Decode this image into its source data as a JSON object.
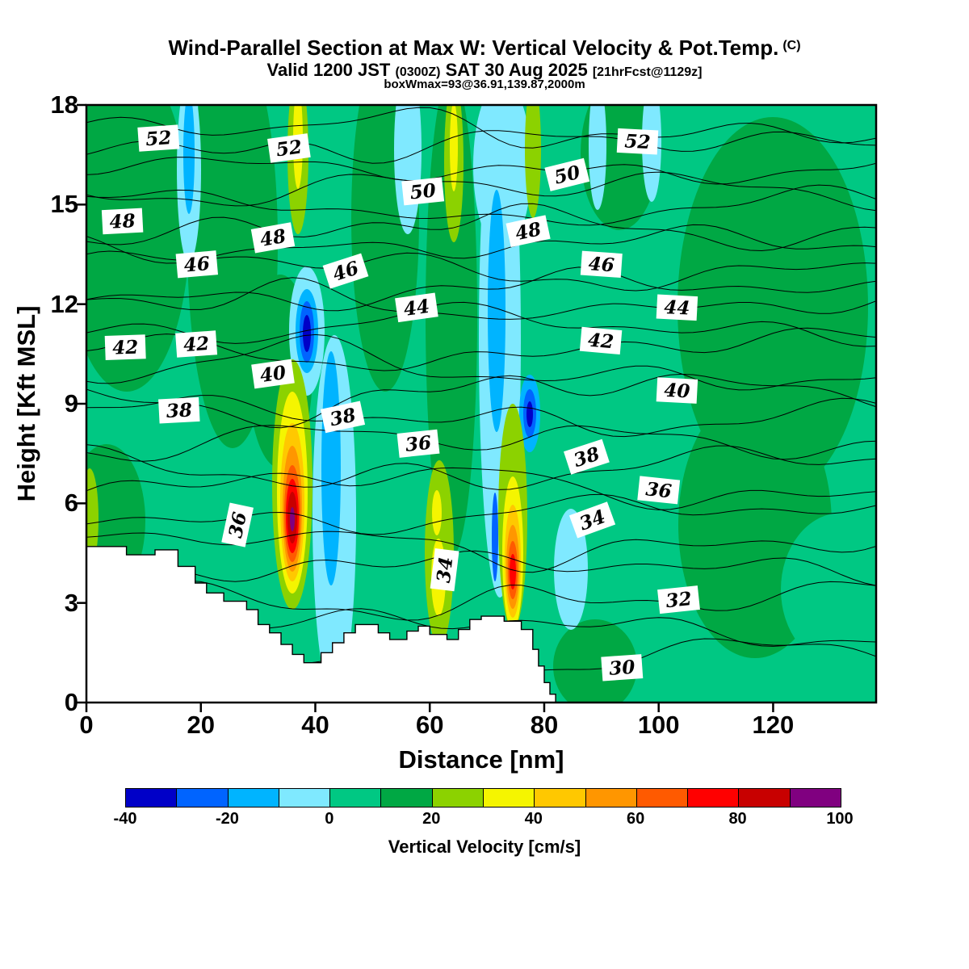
{
  "titles": {
    "main": "Wind-Parallel Section at Max W: Vertical Velocity & Pot.Temp.",
    "main_suffix": "(C)",
    "valid_prefix": "Valid 1200 JST ",
    "valid_small1": "(0300Z)",
    "valid_mid": " SAT 30 Aug 2025 ",
    "valid_small2": "[21hrFcst@1129z]",
    "subtitle2": "boxWmax=93@36.91,139.87,2000m"
  },
  "axes": {
    "x": {
      "label": "Distance [nm]",
      "ticks": [
        0,
        20,
        40,
        60,
        80,
        100,
        120
      ],
      "range": [
        0,
        138
      ]
    },
    "y": {
      "label": "Height [Kft MSL]",
      "ticks": [
        0,
        3,
        6,
        9,
        12,
        15,
        18
      ],
      "range": [
        0,
        18
      ]
    }
  },
  "colorbar": {
    "label": "Vertical Velocity [cm/s]",
    "ticks": [
      -40,
      -20,
      0,
      20,
      40,
      60,
      80,
      100
    ],
    "levels": [
      -40,
      -30,
      -20,
      -10,
      0,
      10,
      20,
      30,
      40,
      50,
      60,
      70,
      80,
      90,
      100
    ],
    "colors": [
      "#0000C8",
      "#0064FF",
      "#00B4FF",
      "#7FE9FF",
      "#00C883",
      "#00A844",
      "#8CD200",
      "#F5F500",
      "#FFC800",
      "#FF9600",
      "#FF5A00",
      "#FF0000",
      "#C80000",
      "#800080"
    ]
  },
  "chart_data": {
    "type": "heatmap",
    "title": "Wind-Parallel Section at Max W: Vertical Velocity & Pot.Temp. (C)",
    "subtitle": "Valid 1200 JST (0300Z) SAT 30 Aug 2025 [21hrFcst@1129z]",
    "annotation": "boxWmax=93@36.91,139.87,2000m",
    "xlabel": "Distance [nm]",
    "ylabel": "Height [Kft MSL]",
    "xlim": [
      0,
      138
    ],
    "ylim": [
      0,
      18
    ],
    "fill_field": "vertical velocity (cm/s), filled contours every 10 cm/s from -40 to 100",
    "line_field": "potential temperature (C), line contours every 1 C, labeled every 2 C",
    "isotherm_labels": [
      {
        "v": 52,
        "x": 12.6,
        "y": 17.0,
        "rot": -4
      },
      {
        "v": 52,
        "x": 35.4,
        "y": 16.7,
        "rot": -8
      },
      {
        "v": 52,
        "x": 96.3,
        "y": 16.9,
        "rot": 3
      },
      {
        "v": 50,
        "x": 58.8,
        "y": 15.4,
        "rot": -6
      },
      {
        "v": 50,
        "x": 84.0,
        "y": 15.9,
        "rot": -14
      },
      {
        "v": 48,
        "x": 6.3,
        "y": 14.5,
        "rot": -3
      },
      {
        "v": 48,
        "x": 32.6,
        "y": 14.0,
        "rot": -10
      },
      {
        "v": 48,
        "x": 77.2,
        "y": 14.2,
        "rot": -12
      },
      {
        "v": 46,
        "x": 19.3,
        "y": 13.2,
        "rot": -5
      },
      {
        "v": 46,
        "x": 45.3,
        "y": 13.0,
        "rot": -18
      },
      {
        "v": 46,
        "x": 90.0,
        "y": 13.2,
        "rot": 4
      },
      {
        "v": 44,
        "x": 57.7,
        "y": 11.9,
        "rot": -8
      },
      {
        "v": 44,
        "x": 103.2,
        "y": 11.9,
        "rot": 3
      },
      {
        "v": 42,
        "x": 6.8,
        "y": 10.7,
        "rot": -2
      },
      {
        "v": 42,
        "x": 19.2,
        "y": 10.8,
        "rot": -4
      },
      {
        "v": 42,
        "x": 89.9,
        "y": 10.9,
        "rot": 5
      },
      {
        "v": 40,
        "x": 32.6,
        "y": 9.9,
        "rot": -8
      },
      {
        "v": 40,
        "x": 103.2,
        "y": 9.4,
        "rot": 3
      },
      {
        "v": 38,
        "x": 16.2,
        "y": 8.8,
        "rot": -3
      },
      {
        "v": 38,
        "x": 44.8,
        "y": 8.6,
        "rot": -12
      },
      {
        "v": 38,
        "x": 87.4,
        "y": 7.4,
        "rot": -18
      },
      {
        "v": 36,
        "x": 58.0,
        "y": 7.8,
        "rot": -6
      },
      {
        "v": 36,
        "x": 26.4,
        "y": 5.35,
        "rot": -78
      },
      {
        "v": 36,
        "x": 100.0,
        "y": 6.4,
        "rot": 6
      },
      {
        "v": 34,
        "x": 62.6,
        "y": 4.0,
        "rot": -83
      },
      {
        "v": 34,
        "x": 88.4,
        "y": 5.5,
        "rot": -20
      },
      {
        "v": 32,
        "x": 103.5,
        "y": 3.1,
        "rot": -6
      },
      {
        "v": 30,
        "x": 93.6,
        "y": 1.05,
        "rot": -4
      }
    ],
    "updrafts": [
      {
        "x_nm": 36,
        "peak_cm_s": 93,
        "height_kft": [
          3,
          10
        ]
      },
      {
        "x_nm": 74.5,
        "peak_cm_s": 65,
        "height_kft": [
          2.5,
          9
        ]
      },
      {
        "x_nm": 61,
        "peak_cm_s": 40,
        "height_kft": [
          2,
          7
        ]
      }
    ],
    "downdrafts": [
      {
        "x_nm": 38.5,
        "min_cm_s": -40,
        "height_kft": [
          9.5,
          12.5
        ]
      },
      {
        "x_nm": 77.5,
        "min_cm_s": -40,
        "height_kft": [
          7.5,
          9.5
        ]
      },
      {
        "x_nm": 43,
        "min_cm_s": -20,
        "height_kft": [
          1.5,
          10
        ]
      },
      {
        "x_nm": 72,
        "min_cm_s": -20,
        "height_kft": [
          3,
          18
        ]
      }
    ],
    "terrain_profile": [
      [
        0,
        4.7
      ],
      [
        7,
        4.7
      ],
      [
        7,
        4.45
      ],
      [
        12,
        4.45
      ],
      [
        12,
        4.6
      ],
      [
        16,
        4.6
      ],
      [
        16,
        4.1
      ],
      [
        19,
        4.1
      ],
      [
        19,
        3.6
      ],
      [
        21,
        3.6
      ],
      [
        21,
        3.3
      ],
      [
        24,
        3.3
      ],
      [
        24,
        3.05
      ],
      [
        28,
        3.05
      ],
      [
        28,
        2.8
      ],
      [
        30,
        2.8
      ],
      [
        30,
        2.35
      ],
      [
        32,
        2.35
      ],
      [
        32,
        2.1
      ],
      [
        34,
        2.1
      ],
      [
        34,
        1.75
      ],
      [
        36,
        1.75
      ],
      [
        36,
        1.45
      ],
      [
        38,
        1.45
      ],
      [
        38,
        1.2
      ],
      [
        41,
        1.2
      ],
      [
        41,
        1.5
      ],
      [
        43,
        1.5
      ],
      [
        43,
        1.8
      ],
      [
        45,
        1.8
      ],
      [
        45,
        2.1
      ],
      [
        47,
        2.1
      ],
      [
        47,
        2.35
      ],
      [
        51,
        2.35
      ],
      [
        51,
        2.1
      ],
      [
        53,
        2.1
      ],
      [
        53,
        1.9
      ],
      [
        56,
        1.9
      ],
      [
        56,
        2.15
      ],
      [
        58,
        2.15
      ],
      [
        58,
        2.3
      ],
      [
        60,
        2.3
      ],
      [
        60,
        2.05
      ],
      [
        63,
        2.05
      ],
      [
        63,
        1.9
      ],
      [
        65,
        1.9
      ],
      [
        65,
        2.2
      ],
      [
        67,
        2.2
      ],
      [
        67,
        2.5
      ],
      [
        69,
        2.5
      ],
      [
        69,
        2.6
      ],
      [
        73,
        2.6
      ],
      [
        73,
        2.45
      ],
      [
        76,
        2.45
      ],
      [
        76,
        2.2
      ],
      [
        78,
        2.2
      ],
      [
        78,
        1.6
      ],
      [
        79,
        1.6
      ],
      [
        79,
        1.1
      ],
      [
        80,
        1.1
      ],
      [
        80,
        0.6
      ],
      [
        81,
        0.6
      ],
      [
        81,
        0.25
      ],
      [
        82,
        0.25
      ],
      [
        82,
        0
      ]
    ]
  }
}
